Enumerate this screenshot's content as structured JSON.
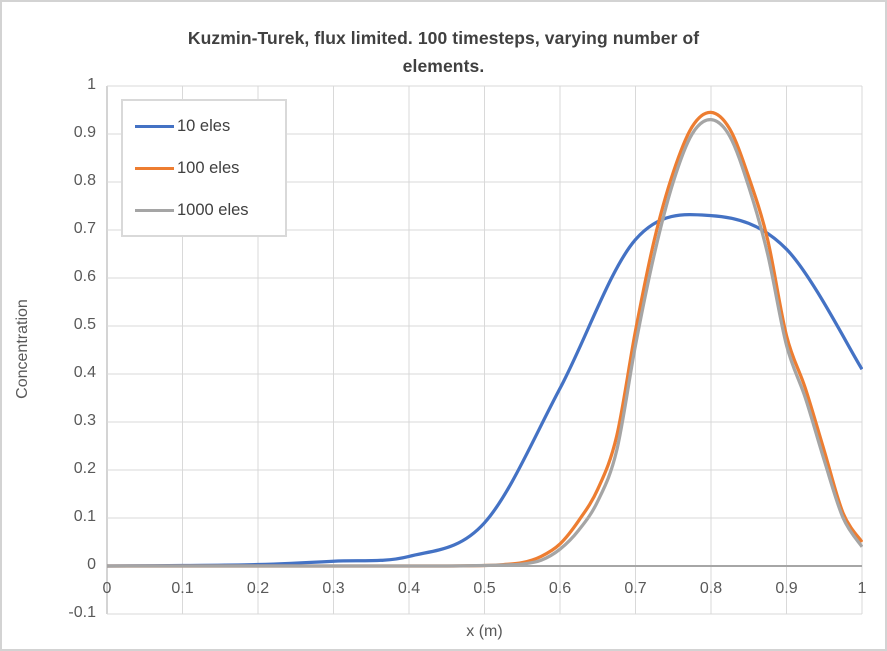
{
  "chart_data": {
    "type": "line",
    "title": "Kuzmin-Turek, flux limited. 100 timesteps, varying number of elements.",
    "title_lines": [
      "Kuzmin-Turek, flux limited. 100 timesteps, varying number of",
      "elements."
    ],
    "xlabel": "x (m)",
    "ylabel": "Concentration",
    "xlim": [
      0,
      1
    ],
    "ylim": [
      -0.1,
      1
    ],
    "xtick_values": [
      0,
      0.1,
      0.2,
      0.3,
      0.4,
      0.5,
      0.6,
      0.7,
      0.8,
      0.9,
      1
    ],
    "xtick_labels": [
      "0",
      "0.1",
      "0.2",
      "0.3",
      "0.4",
      "0.5",
      "0.6",
      "0.7",
      "0.8",
      "0.9",
      "1"
    ],
    "ytick_values": [
      -0.1,
      0,
      0.1,
      0.2,
      0.3,
      0.4,
      0.5,
      0.6,
      0.7,
      0.8,
      0.9,
      1
    ],
    "ytick_labels": [
      "-0.1",
      "0",
      "0.1",
      "0.2",
      "0.3",
      "0.4",
      "0.5",
      "0.6",
      "0.7",
      "0.8",
      "0.9",
      "1"
    ],
    "grid": true,
    "gridline_color": "#d9d9d9",
    "zero_line_color": "#a6a6a6",
    "axis_line_color": "#c6c6c6",
    "legend_position": "top-left-inside",
    "series": [
      {
        "name": "10 eles",
        "color": "#4472c4",
        "x": [
          0,
          0.1,
          0.2,
          0.3,
          0.4,
          0.5,
          0.6,
          0.7,
          0.8,
          0.9,
          1.0
        ],
        "y": [
          0,
          0.001,
          0.003,
          0.01,
          0.02,
          0.09,
          0.37,
          0.68,
          0.73,
          0.66,
          0.41
        ]
      },
      {
        "name": "100 eles",
        "color": "#ed7d31",
        "x": [
          0,
          0.1,
          0.2,
          0.3,
          0.4,
          0.45,
          0.5,
          0.525,
          0.55,
          0.575,
          0.6,
          0.625,
          0.65,
          0.675,
          0.7,
          0.725,
          0.75,
          0.775,
          0.8,
          0.825,
          0.85,
          0.875,
          0.9,
          0.925,
          0.95,
          0.975,
          1.0
        ],
        "y": [
          0,
          0,
          0,
          0,
          0,
          0,
          0.001,
          0.003,
          0.007,
          0.02,
          0.046,
          0.095,
          0.16,
          0.27,
          0.49,
          0.68,
          0.82,
          0.915,
          0.945,
          0.91,
          0.81,
          0.68,
          0.48,
          0.37,
          0.24,
          0.11,
          0.05
        ]
      },
      {
        "name": "1000 eles",
        "color": "#a5a5a5",
        "x": [
          0,
          0.1,
          0.2,
          0.3,
          0.4,
          0.45,
          0.5,
          0.525,
          0.55,
          0.575,
          0.6,
          0.625,
          0.65,
          0.675,
          0.7,
          0.725,
          0.75,
          0.775,
          0.8,
          0.825,
          0.85,
          0.875,
          0.9,
          0.925,
          0.95,
          0.975,
          1.0
        ],
        "y": [
          0,
          0,
          0,
          0,
          0,
          0,
          0.001,
          0.002,
          0.004,
          0.012,
          0.035,
          0.075,
          0.135,
          0.24,
          0.46,
          0.65,
          0.8,
          0.9,
          0.93,
          0.895,
          0.79,
          0.65,
          0.46,
          0.35,
          0.22,
          0.1,
          0.04
        ]
      }
    ]
  }
}
